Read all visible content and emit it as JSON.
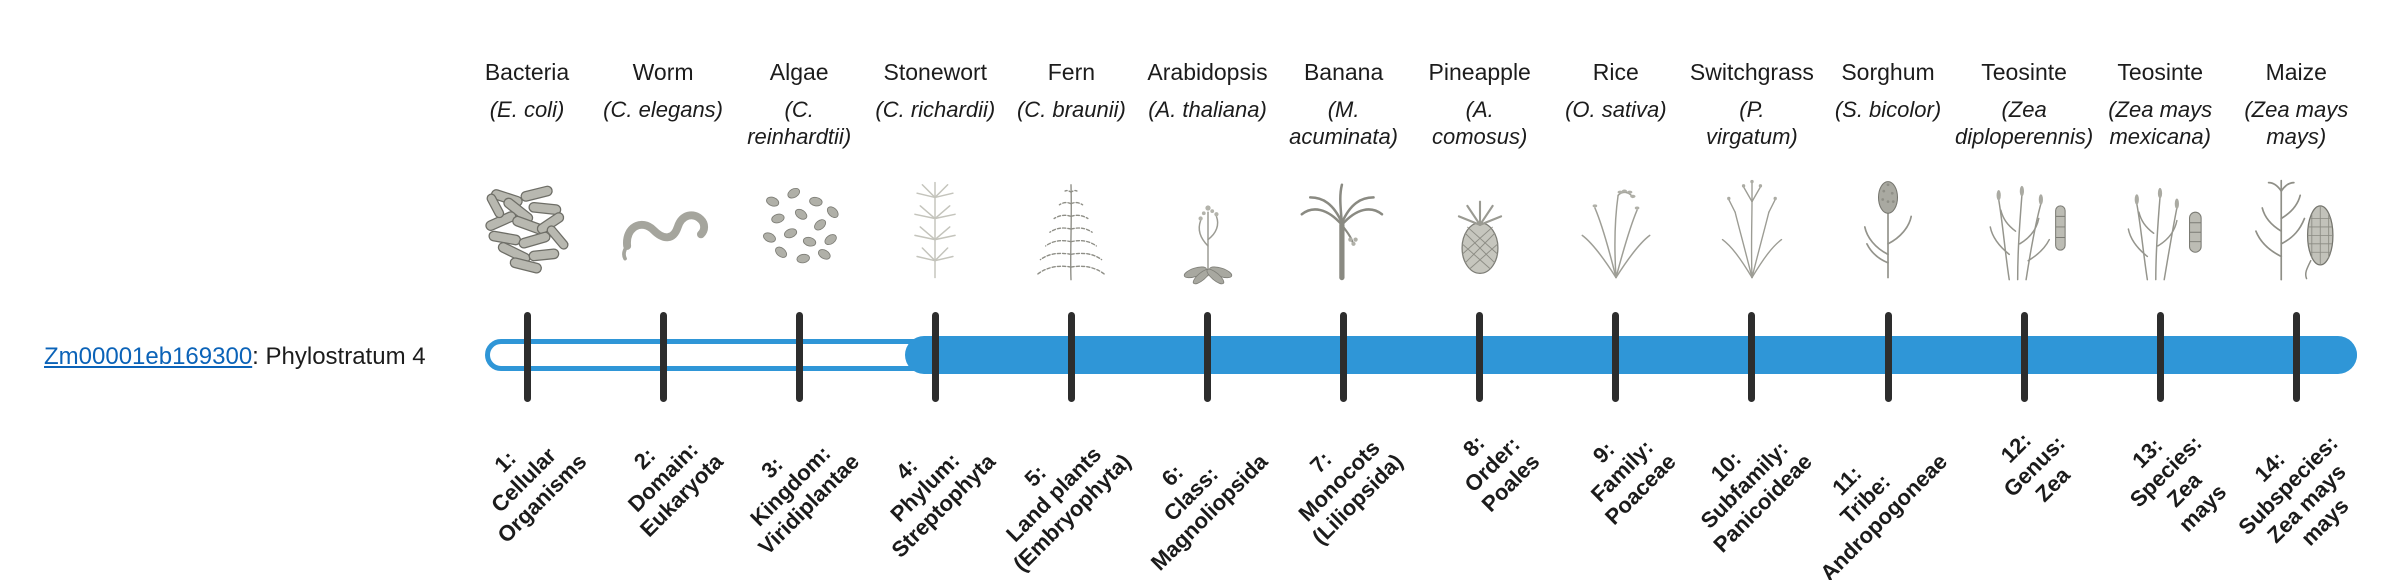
{
  "gene": {
    "id": "Zm00001eb169300",
    "suffix": ": Phylostratum 4",
    "link_color": "#0b63b8"
  },
  "timeline": {
    "bar_color": "#2f96d7",
    "tick_color": "#2d2d2d",
    "filled_from_stratum": 4,
    "total_strata": 14
  },
  "organisms": [
    {
      "common": "Bacteria",
      "scientific": "(E. coli)",
      "icon": "bacteria-icon",
      "stratum_label": "1:\nCellular\nOrganisms"
    },
    {
      "common": "Worm",
      "scientific": "(C. elegans)",
      "icon": "worm-icon",
      "stratum_label": "2:\nDomain:\nEukaryota"
    },
    {
      "common": "Algae",
      "scientific": "(C.\nreinhardtii)",
      "icon": "algae-icon",
      "stratum_label": "3:\nKingdom:\nViridiplantae"
    },
    {
      "common": "Stonewort",
      "scientific": "(C. richardii)",
      "icon": "stonewort-icon",
      "stratum_label": "4:\nPhylum:\nStreptophyta"
    },
    {
      "common": "Fern",
      "scientific": "(C. braunii)",
      "icon": "fern-icon",
      "stratum_label": "5:\nLand plants\n(Embryophyta)"
    },
    {
      "common": "Arabidopsis",
      "scientific": "(A. thaliana)",
      "icon": "arabidopsis-icon",
      "stratum_label": "6:\nClass:\nMagnoliopsida"
    },
    {
      "common": "Banana",
      "scientific": "(M.\nacuminata)",
      "icon": "banana-icon",
      "stratum_label": "7:\nMonocots\n(Liliopsida)"
    },
    {
      "common": "Pineapple",
      "scientific": "(A.\ncomosus)",
      "icon": "pineapple-icon",
      "stratum_label": "8:\nOrder:\nPoales"
    },
    {
      "common": "Rice",
      "scientific": "(O. sativa)",
      "icon": "rice-icon",
      "stratum_label": "9:\nFamily:\nPoaceae"
    },
    {
      "common": "Switchgrass",
      "scientific": "(P.\nvirgatum)",
      "icon": "switchgrass-icon",
      "stratum_label": "10:\nSubfamily:\nPanicoideae"
    },
    {
      "common": "Sorghum",
      "scientific": "(S. bicolor)",
      "icon": "sorghum-icon",
      "stratum_label": "11:\nTribe:\nAndropogoneae"
    },
    {
      "common": "Teosinte",
      "scientific": "(Zea\ndiploperennis)",
      "icon": "teosinte-diploperennis-icon",
      "stratum_label": "12:\nGenus:\nZea"
    },
    {
      "common": "Teosinte",
      "scientific": "(Zea mays\nmexicana)",
      "icon": "teosinte-mexicana-icon",
      "stratum_label": "13:\nSpecies:\nZea\nmays"
    },
    {
      "common": "Maize",
      "scientific": "(Zea mays\nmays)",
      "icon": "maize-icon",
      "stratum_label": "14:\nSubspecies:\nZea mays\nmays"
    }
  ]
}
